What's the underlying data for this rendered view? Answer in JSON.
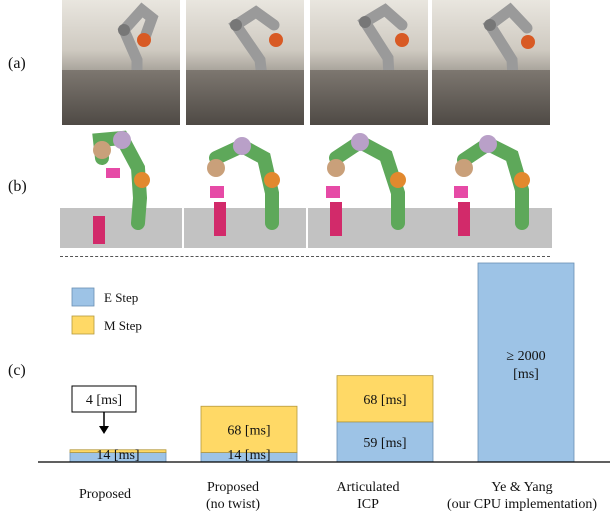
{
  "panel_labels": [
    "(a)",
    "(b)",
    "(c)"
  ],
  "colors": {
    "e_step": "#9dc3e6",
    "m_step": "#ffd966",
    "arm": "#8f8f8f",
    "gripper": "#d85a24"
  },
  "chart_data": {
    "type": "bar",
    "stacked": true,
    "categories": [
      "Proposed",
      "Proposed\n(no twist)",
      "Articulated\nICP",
      "Ye & Yang\n(our CPU implementation)"
    ],
    "series": [
      {
        "name": "E Step",
        "values": [
          14,
          14,
          59,
          2000
        ]
      },
      {
        "name": "M Step",
        "values": [
          4,
          68,
          68,
          0
        ]
      }
    ],
    "bar_labels": [
      {
        "e": "14 [ms]",
        "m": "4 [ms]"
      },
      {
        "e": "14 [ms]",
        "m": "68 [ms]"
      },
      {
        "e": "59 [ms]",
        "m": "68 [ms]"
      },
      {
        "e": "≥ 2000\n[ms]",
        "m": ""
      }
    ],
    "legend_position": "top-left",
    "grid": false
  }
}
